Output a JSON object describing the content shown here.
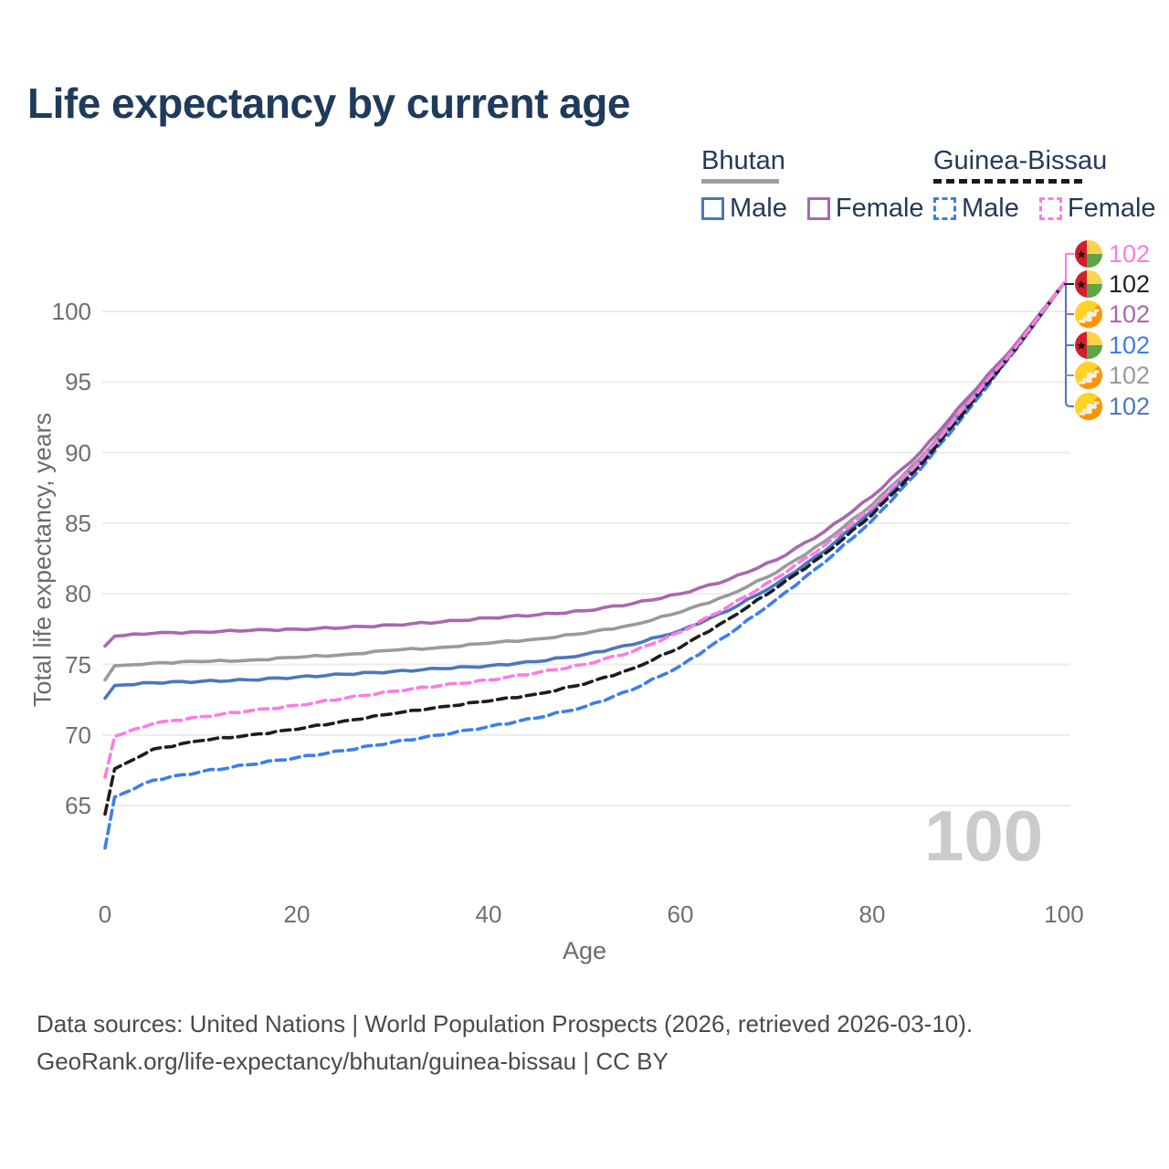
{
  "title": "Life expectancy by current age",
  "watermark_age": "100",
  "legend": {
    "groups": [
      {
        "label": "Bhutan",
        "line_style": "solid",
        "underline_color": "#9e9e9e",
        "items": [
          {
            "label": "Male",
            "color": "#4b78ba"
          },
          {
            "label": "Female",
            "color": "#a968ae"
          }
        ]
      },
      {
        "label": "Guinea-Bissau",
        "line_style": "dashed",
        "underline_color": "#1b1b1b",
        "items": [
          {
            "label": "Male",
            "color": "#3b7ef0"
          },
          {
            "label": "Female",
            "color": "#fb7ce4"
          }
        ]
      }
    ]
  },
  "y_axis": {
    "label": "Total life expectancy, years",
    "ticks": [
      65,
      70,
      75,
      80,
      85,
      90,
      95,
      100
    ]
  },
  "x_axis": {
    "label": "Age",
    "ticks": [
      0,
      20,
      40,
      60,
      80,
      100
    ]
  },
  "end_labels": [
    {
      "country": "Guinea-Bissau",
      "series": "Guinea-Bissau Female",
      "flag": "gw",
      "value": "102",
      "color": "#fb7ce4"
    },
    {
      "country": "Guinea-Bissau",
      "series": "Guinea-Bissau Total",
      "flag": "gw",
      "value": "102",
      "color": "#222222"
    },
    {
      "country": "Bhutan",
      "series": "Bhutan Female",
      "flag": "bt",
      "value": "102",
      "color": "#a968ae"
    },
    {
      "country": "Guinea-Bissau",
      "series": "Guinea-Bissau Male",
      "flag": "gw",
      "value": "102",
      "color": "#3b7ef0"
    },
    {
      "country": "Bhutan",
      "series": "Bhutan Total",
      "flag": "bt",
      "value": "102",
      "color": "#9a9a9a"
    },
    {
      "country": "Bhutan",
      "series": "Bhutan Male",
      "flag": "bt",
      "value": "102",
      "color": "#4b78ba"
    }
  ],
  "footer": {
    "line1": "Data sources: United Nations | World Population Prospects (2026, retrieved 2026-03-10).",
    "line2": "GeoRank.org/life-expectancy/bhutan/guinea-bissau | CC BY"
  },
  "chart_data": {
    "type": "line",
    "title": "Life expectancy by current age",
    "xlabel": "Age",
    "ylabel": "Total life expectancy, years",
    "xlim": [
      0,
      100
    ],
    "ylim": [
      61,
      103
    ],
    "x_ticks": [
      0,
      20,
      40,
      60,
      80,
      100
    ],
    "y_ticks": [
      65,
      70,
      75,
      80,
      85,
      90,
      95,
      100
    ],
    "grid": "horizontal",
    "legend_position": "top-right",
    "ages": [
      0,
      1,
      5,
      10,
      15,
      20,
      25,
      30,
      35,
      40,
      45,
      50,
      55,
      60,
      65,
      70,
      75,
      80,
      85,
      90,
      95,
      100
    ],
    "series": [
      {
        "name": "Bhutan Male",
        "country": "Bhutan",
        "sex": "Male",
        "style": "solid",
        "color": "#4b78ba",
        "values": [
          72.6,
          73.5,
          73.7,
          73.8,
          73.9,
          74.1,
          74.3,
          74.5,
          74.7,
          74.9,
          75.2,
          75.7,
          76.4,
          77.4,
          78.8,
          80.7,
          83.0,
          85.9,
          89.3,
          93.4,
          97.5,
          102
        ]
      },
      {
        "name": "Bhutan Female",
        "country": "Bhutan",
        "sex": "Female",
        "style": "solid",
        "color": "#a968ae",
        "values": [
          76.3,
          77.0,
          77.2,
          77.3,
          77.4,
          77.5,
          77.6,
          77.8,
          78.0,
          78.3,
          78.5,
          78.8,
          79.3,
          80.0,
          81.0,
          82.4,
          84.4,
          86.9,
          90.0,
          93.9,
          97.7,
          102
        ]
      },
      {
        "name": "Bhutan Total",
        "country": "Bhutan",
        "sex": "Both",
        "style": "solid",
        "color": "#9a9a9a",
        "values": [
          73.9,
          74.9,
          75.1,
          75.2,
          75.3,
          75.5,
          75.7,
          76.0,
          76.2,
          76.5,
          76.8,
          77.2,
          77.8,
          78.7,
          79.9,
          81.5,
          83.7,
          86.3,
          89.6,
          93.6,
          97.6,
          102
        ]
      },
      {
        "name": "Guinea-Bissau Male",
        "country": "Guinea-Bissau",
        "sex": "Male",
        "style": "dashed",
        "color": "#3b7ef0",
        "values": [
          62.0,
          65.6,
          66.8,
          67.4,
          67.9,
          68.4,
          68.9,
          69.5,
          70.0,
          70.6,
          71.2,
          72.0,
          73.2,
          74.9,
          77.1,
          79.6,
          82.2,
          85.2,
          88.8,
          93.0,
          97.3,
          102
        ]
      },
      {
        "name": "Guinea-Bissau Female",
        "country": "Guinea-Bissau",
        "sex": "Female",
        "style": "dashed",
        "color": "#fb7ce4",
        "values": [
          67.0,
          69.9,
          70.8,
          71.3,
          71.7,
          72.1,
          72.6,
          73.1,
          73.5,
          73.9,
          74.4,
          75.0,
          75.9,
          77.3,
          79.1,
          81.1,
          83.4,
          86.1,
          89.4,
          93.5,
          97.5,
          102
        ]
      },
      {
        "name": "Guinea-Bissau Total",
        "country": "Guinea-Bissau",
        "sex": "Both",
        "style": "dashed",
        "color": "#1d1d1d",
        "values": [
          64.4,
          67.6,
          69.0,
          69.6,
          70.0,
          70.4,
          71.0,
          71.5,
          72.0,
          72.4,
          72.9,
          73.6,
          74.7,
          76.2,
          78.2,
          80.4,
          82.8,
          85.6,
          89.1,
          93.2,
          97.4,
          102
        ]
      }
    ],
    "value_at_age_100": 102
  }
}
